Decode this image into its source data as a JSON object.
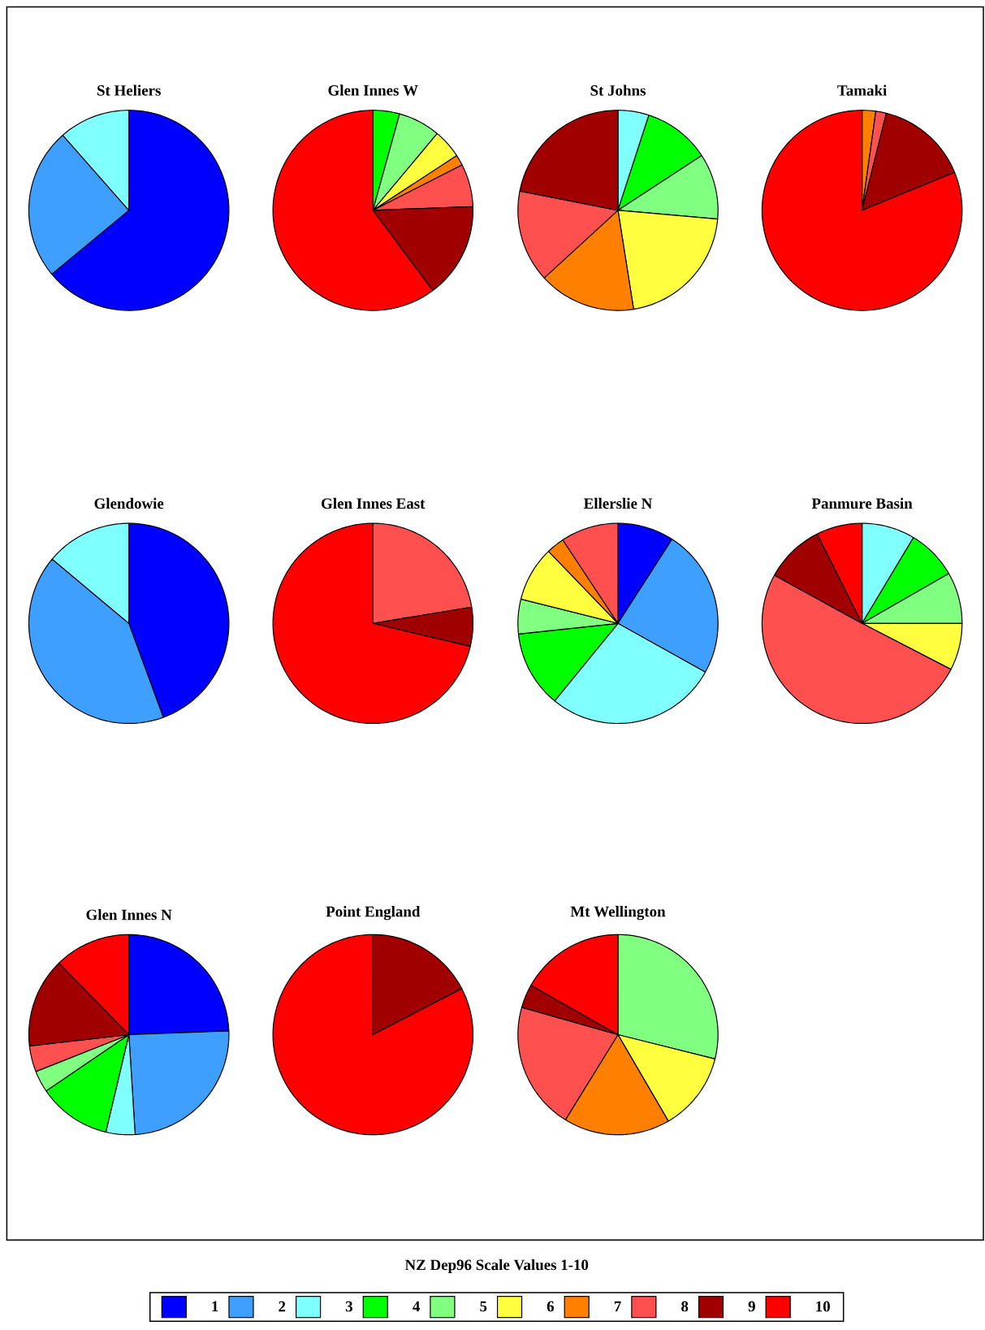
{
  "chart_data": [
    {
      "type": "pie",
      "title": "St Heliers",
      "categories": [
        null,
        null,
        null,
        null,
        null,
        null,
        null,
        null,
        null,
        null
      ],
      "values": [
        64,
        24.5,
        11.5,
        0,
        0,
        0,
        0,
        0,
        0,
        0
      ],
      "colors": [
        "#0000ff",
        "#3f9fff",
        "#80ffff",
        "#00ff00",
        "#80ff80",
        "#ffff40",
        "#ff8000",
        "#ff5050",
        "#a00000",
        "#ff0000"
      ]
    },
    {
      "type": "pie",
      "title": "Glen Innes W",
      "categories": [
        null,
        null,
        null,
        null,
        null,
        null,
        null,
        null,
        null,
        null
      ],
      "values": [
        0,
        0,
        0,
        4.3,
        6.8,
        4.7,
        1.7,
        6.9,
        15.4,
        60.2
      ],
      "colors": [
        "#0000ff",
        "#3f9fff",
        "#80ffff",
        "#00ff00",
        "#80ff80",
        "#ffff40",
        "#ff8000",
        "#ff5050",
        "#a00000",
        "#ff0000"
      ]
    },
    {
      "type": "pie",
      "title": "St Johns",
      "categories": [
        null,
        null,
        null,
        null,
        null,
        null,
        null,
        null,
        null,
        null
      ],
      "values": [
        0,
        0,
        5,
        10.8,
        10.6,
        21.1,
        15.7,
        14.9,
        21.9,
        0
      ],
      "colors": [
        "#0000ff",
        "#3f9fff",
        "#80ffff",
        "#00ff00",
        "#80ff80",
        "#ffff40",
        "#ff8000",
        "#ff5050",
        "#a00000",
        "#ff0000"
      ]
    },
    {
      "type": "pie",
      "title": "Tamaki",
      "categories": [
        null,
        null,
        null,
        null,
        null,
        null,
        null,
        null,
        null,
        null
      ],
      "values": [
        0,
        0,
        0,
        0,
        0,
        0,
        2.2,
        1.7,
        14.9,
        81.2
      ],
      "colors": [
        "#0000ff",
        "#3f9fff",
        "#80ffff",
        "#00ff00",
        "#80ff80",
        "#ffff40",
        "#ff8000",
        "#ff5050",
        "#a00000",
        "#ff0000"
      ]
    },
    {
      "type": "pie",
      "title": "Glendowie",
      "categories": [
        null,
        null,
        null,
        null,
        null,
        null,
        null,
        null,
        null,
        null
      ],
      "values": [
        44.4,
        41.7,
        13.9,
        0,
        0,
        0,
        0,
        0,
        0,
        0
      ],
      "colors": [
        "#0000ff",
        "#3f9fff",
        "#80ffff",
        "#00ff00",
        "#80ff80",
        "#ffff40",
        "#ff8000",
        "#ff5050",
        "#a00000",
        "#ff0000"
      ]
    },
    {
      "type": "pie",
      "title": "Glen Innes East",
      "categories": [
        null,
        null,
        null,
        null,
        null,
        null,
        null,
        null,
        null,
        null
      ],
      "values": [
        0,
        0,
        0,
        0,
        0,
        0,
        0,
        22.4,
        6.3,
        71.3
      ],
      "colors": [
        "#0000ff",
        "#3f9fff",
        "#80ffff",
        "#00ff00",
        "#80ff80",
        "#ffff40",
        "#ff8000",
        "#ff5050",
        "#a00000",
        "#ff0000"
      ]
    },
    {
      "type": "pie",
      "title": "Ellerslie N",
      "categories": [
        null,
        null,
        null,
        null,
        null,
        null,
        null,
        null,
        null,
        null
      ],
      "values": [
        9.1,
        24.0,
        27.8,
        12.4,
        5.6,
        8.9,
        2.9,
        9.3,
        0,
        0
      ],
      "colors": [
        "#0000ff",
        "#3f9fff",
        "#80ffff",
        "#00ff00",
        "#80ff80",
        "#ffff40",
        "#ff8000",
        "#ff5050",
        "#a00000",
        "#ff0000"
      ]
    },
    {
      "type": "pie",
      "title": "Panmure Basin",
      "categories": [
        null,
        null,
        null,
        null,
        null,
        null,
        null,
        null,
        null,
        null
      ],
      "values": [
        0,
        0,
        8.6,
        8.1,
        8.3,
        7.6,
        0,
        50.4,
        9.6,
        7.4
      ],
      "colors": [
        "#0000ff",
        "#3f9fff",
        "#80ffff",
        "#00ff00",
        "#80ff80",
        "#ffff40",
        "#ff8000",
        "#ff5050",
        "#a00000",
        "#ff0000"
      ]
    },
    {
      "type": "pie",
      "title": "Glen Innes N",
      "categories": [
        null,
        null,
        null,
        null,
        null,
        null,
        null,
        null,
        null,
        null
      ],
      "values": [
        24.4,
        24.6,
        4.7,
        11.8,
        3.5,
        0,
        0,
        4.2,
        14.5,
        12.3
      ],
      "colors": [
        "#0000ff",
        "#3f9fff",
        "#80ffff",
        "#00ff00",
        "#80ff80",
        "#ffff40",
        "#ff8000",
        "#ff5050",
        "#a00000",
        "#ff0000"
      ]
    },
    {
      "type": "pie",
      "title": "Point England",
      "categories": [
        null,
        null,
        null,
        null,
        null,
        null,
        null,
        null,
        null,
        null
      ],
      "values": [
        0,
        0,
        0,
        0,
        0,
        0,
        0,
        0,
        17.4,
        82.6
      ],
      "colors": [
        "#0000ff",
        "#3f9fff",
        "#80ffff",
        "#00ff00",
        "#80ff80",
        "#ffff40",
        "#ff8000",
        "#ff5050",
        "#a00000",
        "#ff0000"
      ]
    },
    {
      "type": "pie",
      "title": "Mt Wellington",
      "categories": [
        "1",
        "2",
        "3",
        "4",
        "5",
        "6",
        "7",
        "8",
        "9",
        "10"
      ],
      "values": [
        0,
        0,
        0,
        0,
        28.9,
        12.7,
        17.2,
        20.6,
        3.8,
        16.8
      ],
      "colors": [
        "#0000ff",
        "#3f9fff",
        "#80ffff",
        "#00ff00",
        "#80ff80",
        "#ffff40",
        "#ff8000",
        "#ff5050",
        "#a00000",
        "#ff0000"
      ],
      "legend": "bottom",
      "legend_title": "NZ Dep96 Scale Values 1-10"
    }
  ]
}
